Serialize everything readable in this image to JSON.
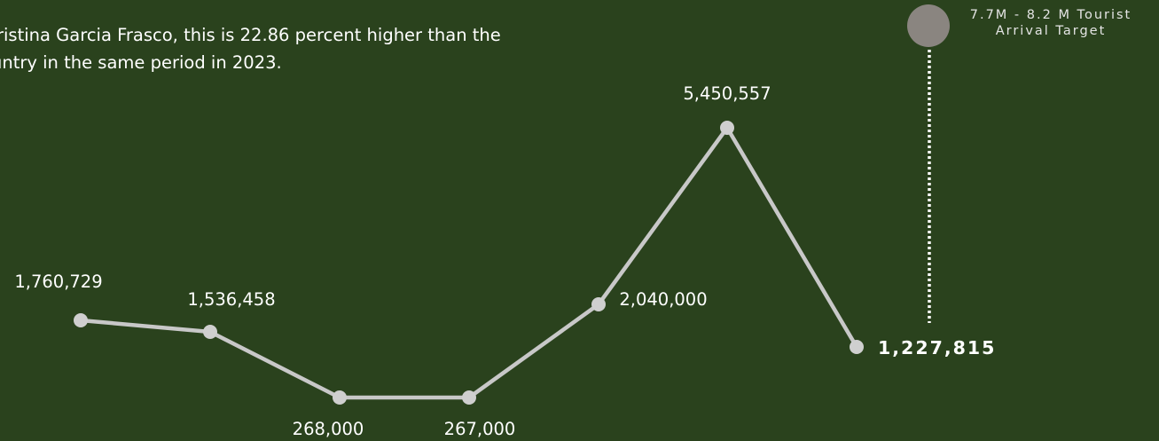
{
  "intro": {
    "line1": "ristina Garcia Frasco, this is 22.86 percent higher than the",
    "line2": "untry in the same period in 2023."
  },
  "chart_data": {
    "type": "line",
    "points": [
      {
        "label": "1,760,729",
        "value": 1760729
      },
      {
        "label": "1,536,458",
        "value": 1536458
      },
      {
        "label": "268,000",
        "value": 268000
      },
      {
        "label": "267,000",
        "value": 267000
      },
      {
        "label": "2,040,000",
        "value": 2040000
      },
      {
        "label": "5,450,557",
        "value": 5450557
      },
      {
        "label": "1,227,815",
        "value": 1227815
      }
    ],
    "target": {
      "label_line1": "7.7M - 8.2 M Tourist",
      "label_line2": "Arrival Target",
      "range": [
        7700000,
        8200000
      ]
    }
  },
  "colors": {
    "background": "#2a421d",
    "line": "#c8c8c8",
    "point": "#cfcfcf",
    "target_marker": "#8a8580",
    "text": "#ffffff"
  }
}
